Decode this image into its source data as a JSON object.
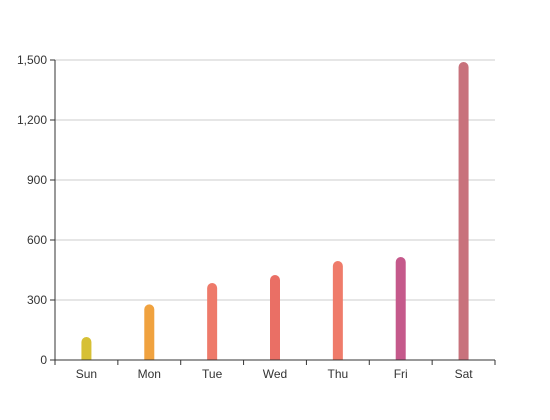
{
  "chart_data": {
    "type": "bar",
    "categories": [
      "Sun",
      "Mon",
      "Tue",
      "Wed",
      "Thu",
      "Fri",
      "Sat"
    ],
    "values": [
      115,
      278,
      385,
      425,
      495,
      515,
      1490
    ],
    "colors": [
      "#d6c035",
      "#f0a23f",
      "#ee7a6a",
      "#ea6f65",
      "#ef7b6a",
      "#c5598b",
      "#c8727c"
    ],
    "yticks": [
      0,
      300,
      600,
      900,
      1200,
      1500
    ],
    "ytick_labels": [
      "0",
      "300",
      "600",
      "900",
      "1,200",
      "1,500"
    ],
    "ylim": [
      0,
      1500
    ],
    "grid": true,
    "title": "",
    "xlabel": "",
    "ylabel": ""
  }
}
